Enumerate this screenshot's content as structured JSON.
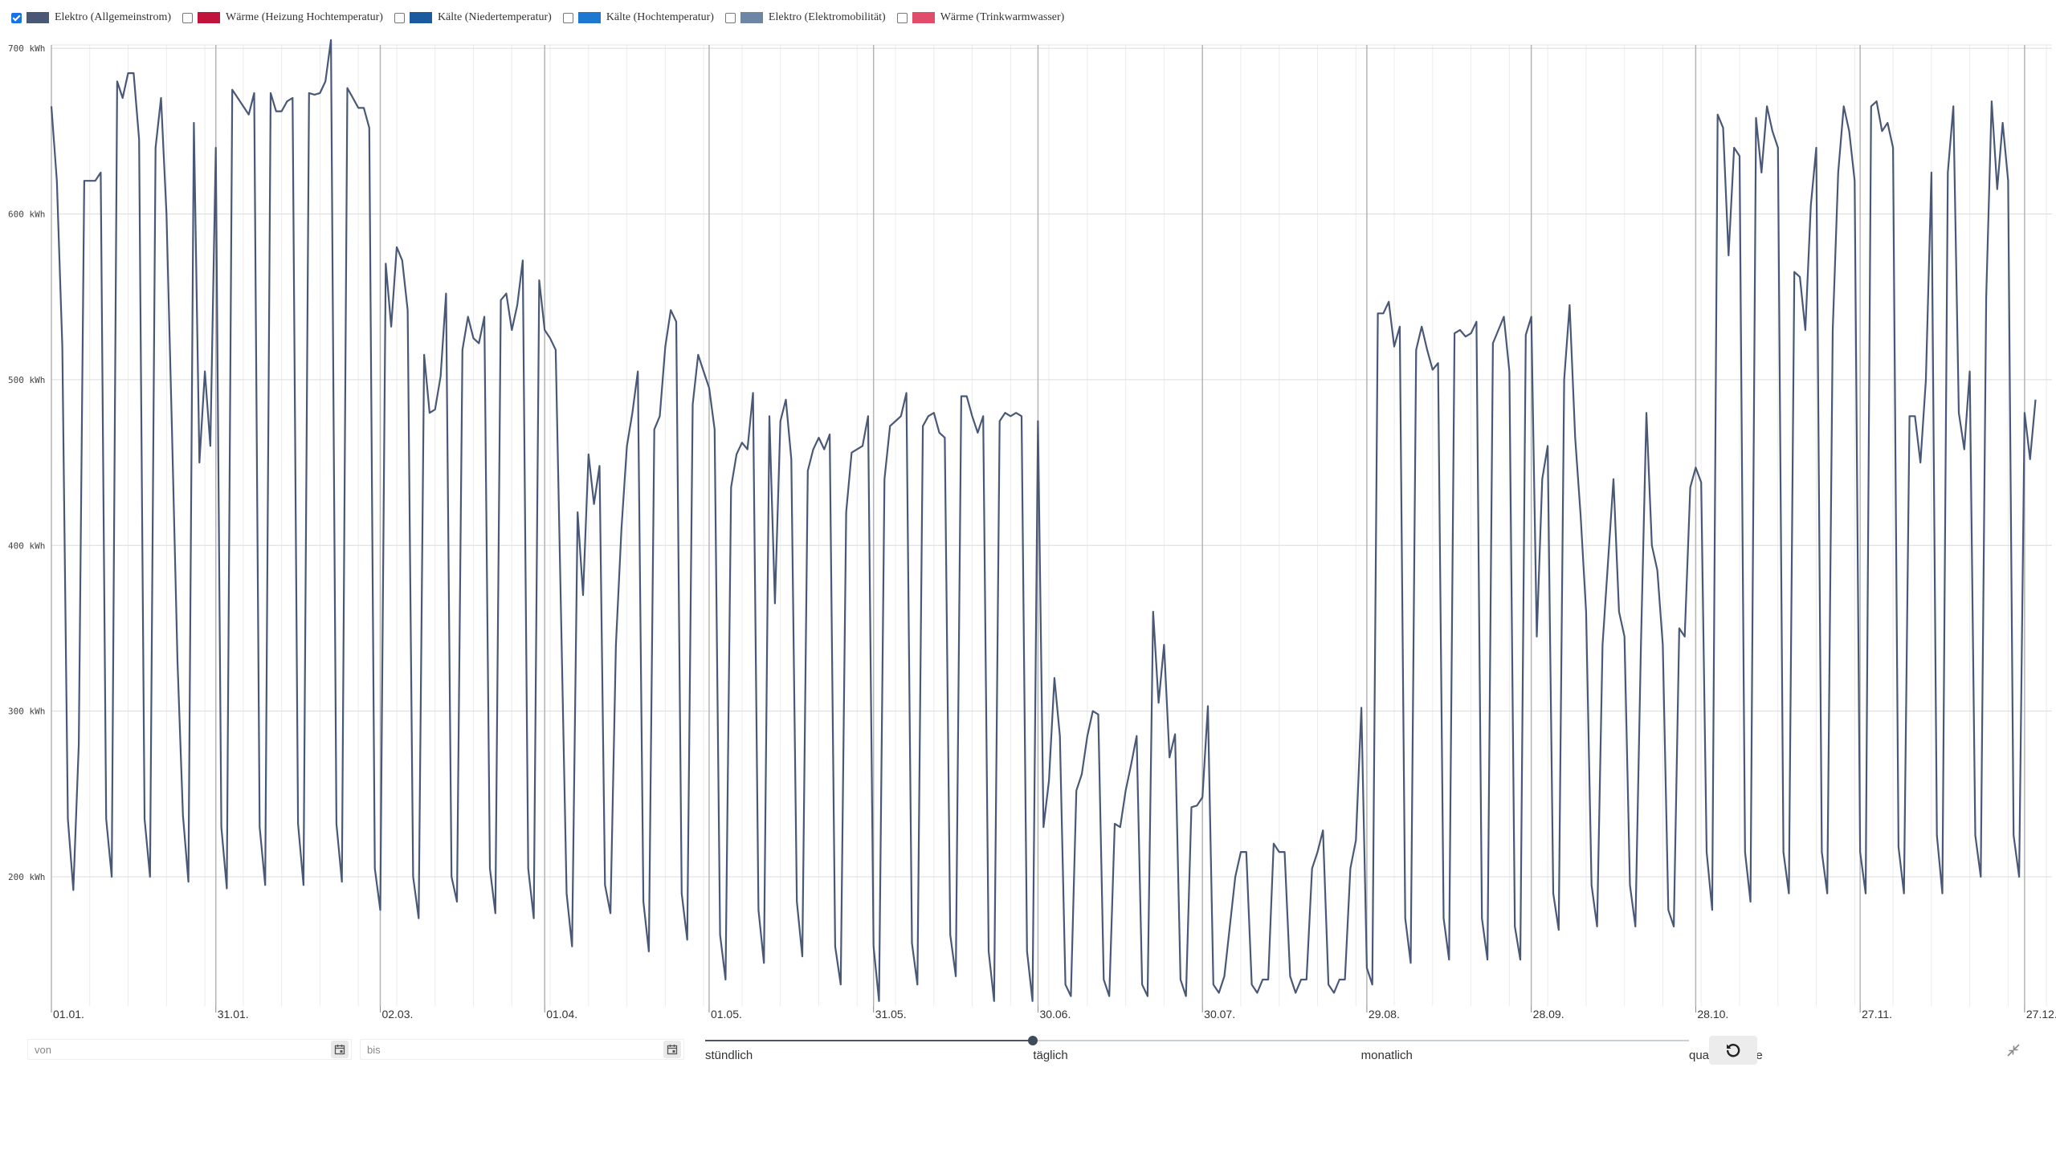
{
  "legend": [
    {
      "label": "Elektro (Allgemeinstrom)",
      "color": "#4a5878",
      "checked": true
    },
    {
      "label": "Wärme (Heizung Hochtemperatur)",
      "color": "#c0143c",
      "checked": false
    },
    {
      "label": "Kälte (Niedertemperatur)",
      "color": "#1c5aa0",
      "checked": false
    },
    {
      "label": "Kälte (Hochtemperatur)",
      "color": "#1f78d0",
      "checked": false
    },
    {
      "label": "Elektro (Elektromobilität)",
      "color": "#6e86a6",
      "checked": false
    },
    {
      "label": "Wärme (Trinkwarmwasser)",
      "color": "#e04c6a",
      "checked": false
    }
  ],
  "controls": {
    "from_placeholder": "von",
    "to_placeholder": "bis",
    "resolution_options": [
      "stündlich",
      "täglich",
      "monatlich",
      "quartalsweise"
    ],
    "resolution_selected_index": 1,
    "reset_icon": "reset-icon",
    "collapse_icon": "collapse-icon",
    "calendar_icon": "calendar-icon"
  },
  "chart_data": {
    "type": "line",
    "series": [
      {
        "name": "Elektro (Allgemeinstrom)",
        "color": "#4a5878",
        "start_date": "01.01.",
        "step": "1 day",
        "values": [
          665,
          620,
          520,
          235,
          192,
          280,
          620,
          620,
          620,
          625,
          235,
          200,
          680,
          670,
          685,
          685,
          645,
          235,
          200,
          640,
          670,
          600,
          470,
          330,
          237,
          197,
          655,
          450,
          505,
          460,
          640,
          230,
          193,
          675,
          670,
          665,
          660,
          673,
          230,
          195,
          673,
          662,
          662,
          668,
          670,
          232,
          195,
          673,
          672,
          673,
          680,
          705,
          232,
          197,
          676,
          670,
          664,
          664,
          652,
          205,
          180,
          570,
          532,
          580,
          572,
          542,
          200,
          175,
          515,
          480,
          482,
          502,
          552,
          200,
          185,
          518,
          538,
          525,
          522,
          538,
          205,
          178,
          548,
          552,
          530,
          545,
          572,
          205,
          175,
          560,
          530,
          525,
          518,
          355,
          190,
          158,
          420,
          370,
          455,
          425,
          448,
          195,
          178,
          340,
          410,
          460,
          480,
          505,
          185,
          155,
          470,
          478,
          520,
          542,
          535,
          190,
          162,
          485,
          515,
          505,
          495,
          470,
          165,
          138,
          435,
          455,
          462,
          458,
          492,
          180,
          148,
          478,
          365,
          475,
          488,
          452,
          185,
          152,
          445,
          458,
          465,
          458,
          467,
          158,
          135,
          420,
          456,
          458,
          460,
          478,
          158,
          125,
          440,
          472,
          475,
          478,
          492,
          160,
          135,
          472,
          478,
          480,
          468,
          465,
          165,
          140,
          490,
          490,
          478,
          468,
          478,
          155,
          125,
          475,
          480,
          478,
          480,
          478,
          155,
          125,
          475,
          230,
          258,
          320,
          285,
          135,
          128,
          252,
          262,
          285,
          300,
          298,
          138,
          128,
          232,
          230,
          252,
          268,
          285,
          135,
          128,
          360,
          305,
          340,
          272,
          286,
          138,
          128,
          242,
          243,
          248,
          303,
          135,
          130,
          140,
          170,
          200,
          215,
          215,
          135,
          130,
          138,
          138,
          220,
          215,
          215,
          140,
          130,
          138,
          138,
          205,
          215,
          228,
          135,
          130,
          138,
          138,
          205,
          222,
          302,
          145,
          135,
          540,
          540,
          547,
          520,
          532,
          175,
          148,
          518,
          532,
          518,
          506,
          510,
          175,
          150,
          528,
          530,
          526,
          528,
          535,
          175,
          150,
          522,
          530,
          538,
          505,
          170,
          150,
          527,
          538,
          345,
          440,
          460,
          190,
          168,
          500,
          545,
          465,
          418,
          360,
          195,
          170,
          340,
          390,
          440,
          360,
          345,
          195,
          170,
          340,
          480,
          400,
          385,
          340,
          180,
          170,
          350,
          345,
          435,
          447,
          438,
          215,
          180,
          660,
          652,
          575,
          640,
          635,
          215,
          185,
          658,
          625,
          665,
          650,
          640,
          215,
          190,
          565,
          562,
          530,
          605,
          640,
          215,
          190,
          530,
          625,
          665,
          650,
          620,
          215,
          190,
          665,
          668,
          650,
          655,
          640,
          218,
          190,
          478,
          478,
          450,
          500,
          625,
          225,
          190,
          625,
          665,
          480,
          458,
          505,
          225,
          200,
          550,
          668,
          615,
          655,
          620,
          225,
          200,
          480,
          452,
          488
        ]
      }
    ],
    "x_tick_labels": [
      "01.01.",
      "31.01.",
      "02.03.",
      "01.04.",
      "01.05.",
      "31.05.",
      "30.06.",
      "30.07.",
      "29.08.",
      "28.09.",
      "28.10.",
      "27.11.",
      "27.12."
    ],
    "x_tick_day_offsets": [
      0,
      30,
      60,
      90,
      120,
      150,
      180,
      210,
      240,
      270,
      300,
      330,
      360
    ],
    "y_tick_values": [
      200,
      300,
      400,
      500,
      600,
      700
    ],
    "y_tick_labels": [
      "200 kWh",
      "300 kWh",
      "400 kWh",
      "500 kWh",
      "600 kWh",
      "700 kWh"
    ],
    "ylim": [
      122,
      702
    ],
    "ylabel": "",
    "xlabel": "",
    "grid": true
  }
}
